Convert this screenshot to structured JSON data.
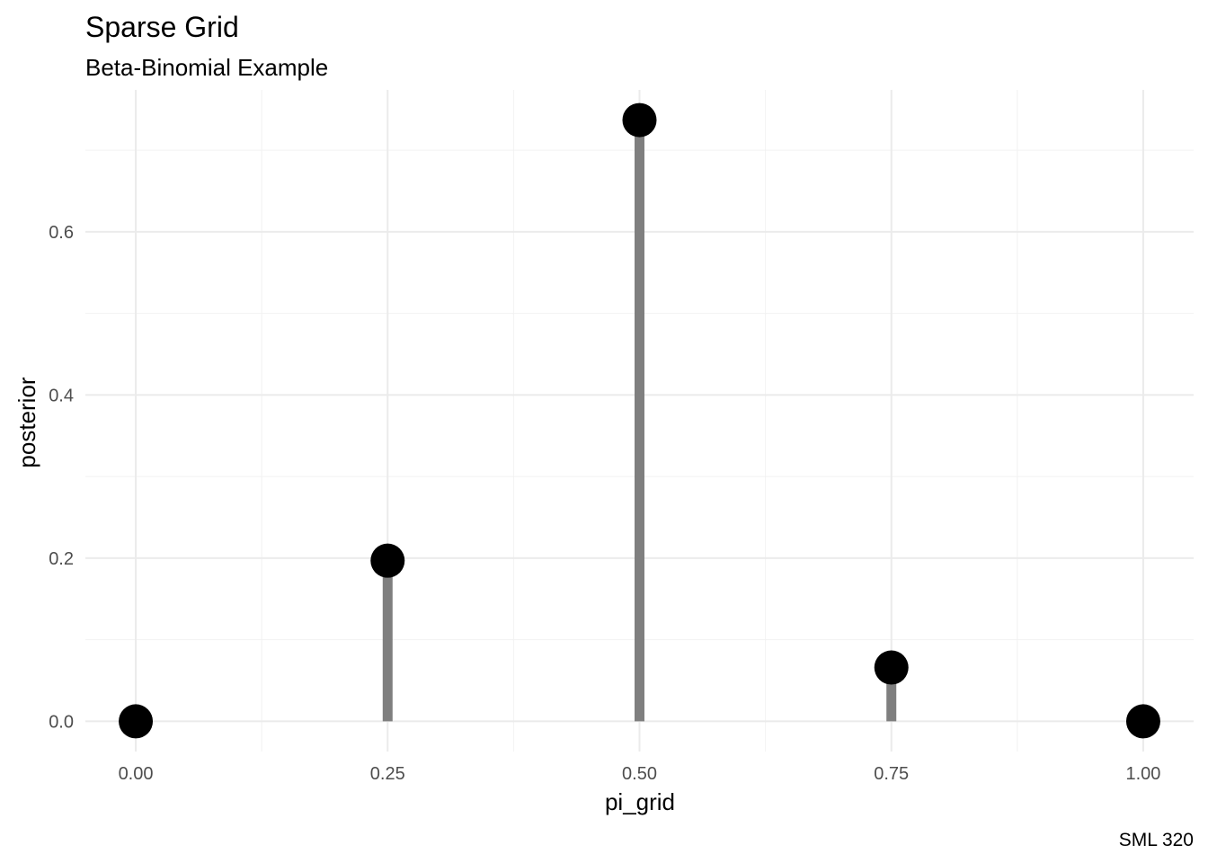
{
  "chart_data": {
    "type": "lollipop",
    "title": "Sparse Grid",
    "subtitle": "Beta-Binomial Example",
    "xlabel": "pi_grid",
    "ylabel": "posterior",
    "caption": "SML 320",
    "x": [
      0,
      0.25,
      0.5,
      0.75,
      1
    ],
    "y": [
      0,
      0.197,
      0.737,
      0.066,
      0
    ],
    "x_ticks": [
      "0.00",
      "0.25",
      "0.50",
      "0.75",
      "1.00"
    ],
    "x_tick_values": [
      0,
      0.25,
      0.5,
      0.75,
      1
    ],
    "y_ticks": [
      "0.0",
      "0.2",
      "0.4",
      "0.6"
    ],
    "y_tick_values": [
      0,
      0.2,
      0.4,
      0.6
    ],
    "xlim": [
      -0.05,
      1.05
    ],
    "ylim": [
      -0.037,
      0.774
    ],
    "grid": true,
    "stem_color": "#7f7f7f",
    "point_color": "#000000"
  }
}
